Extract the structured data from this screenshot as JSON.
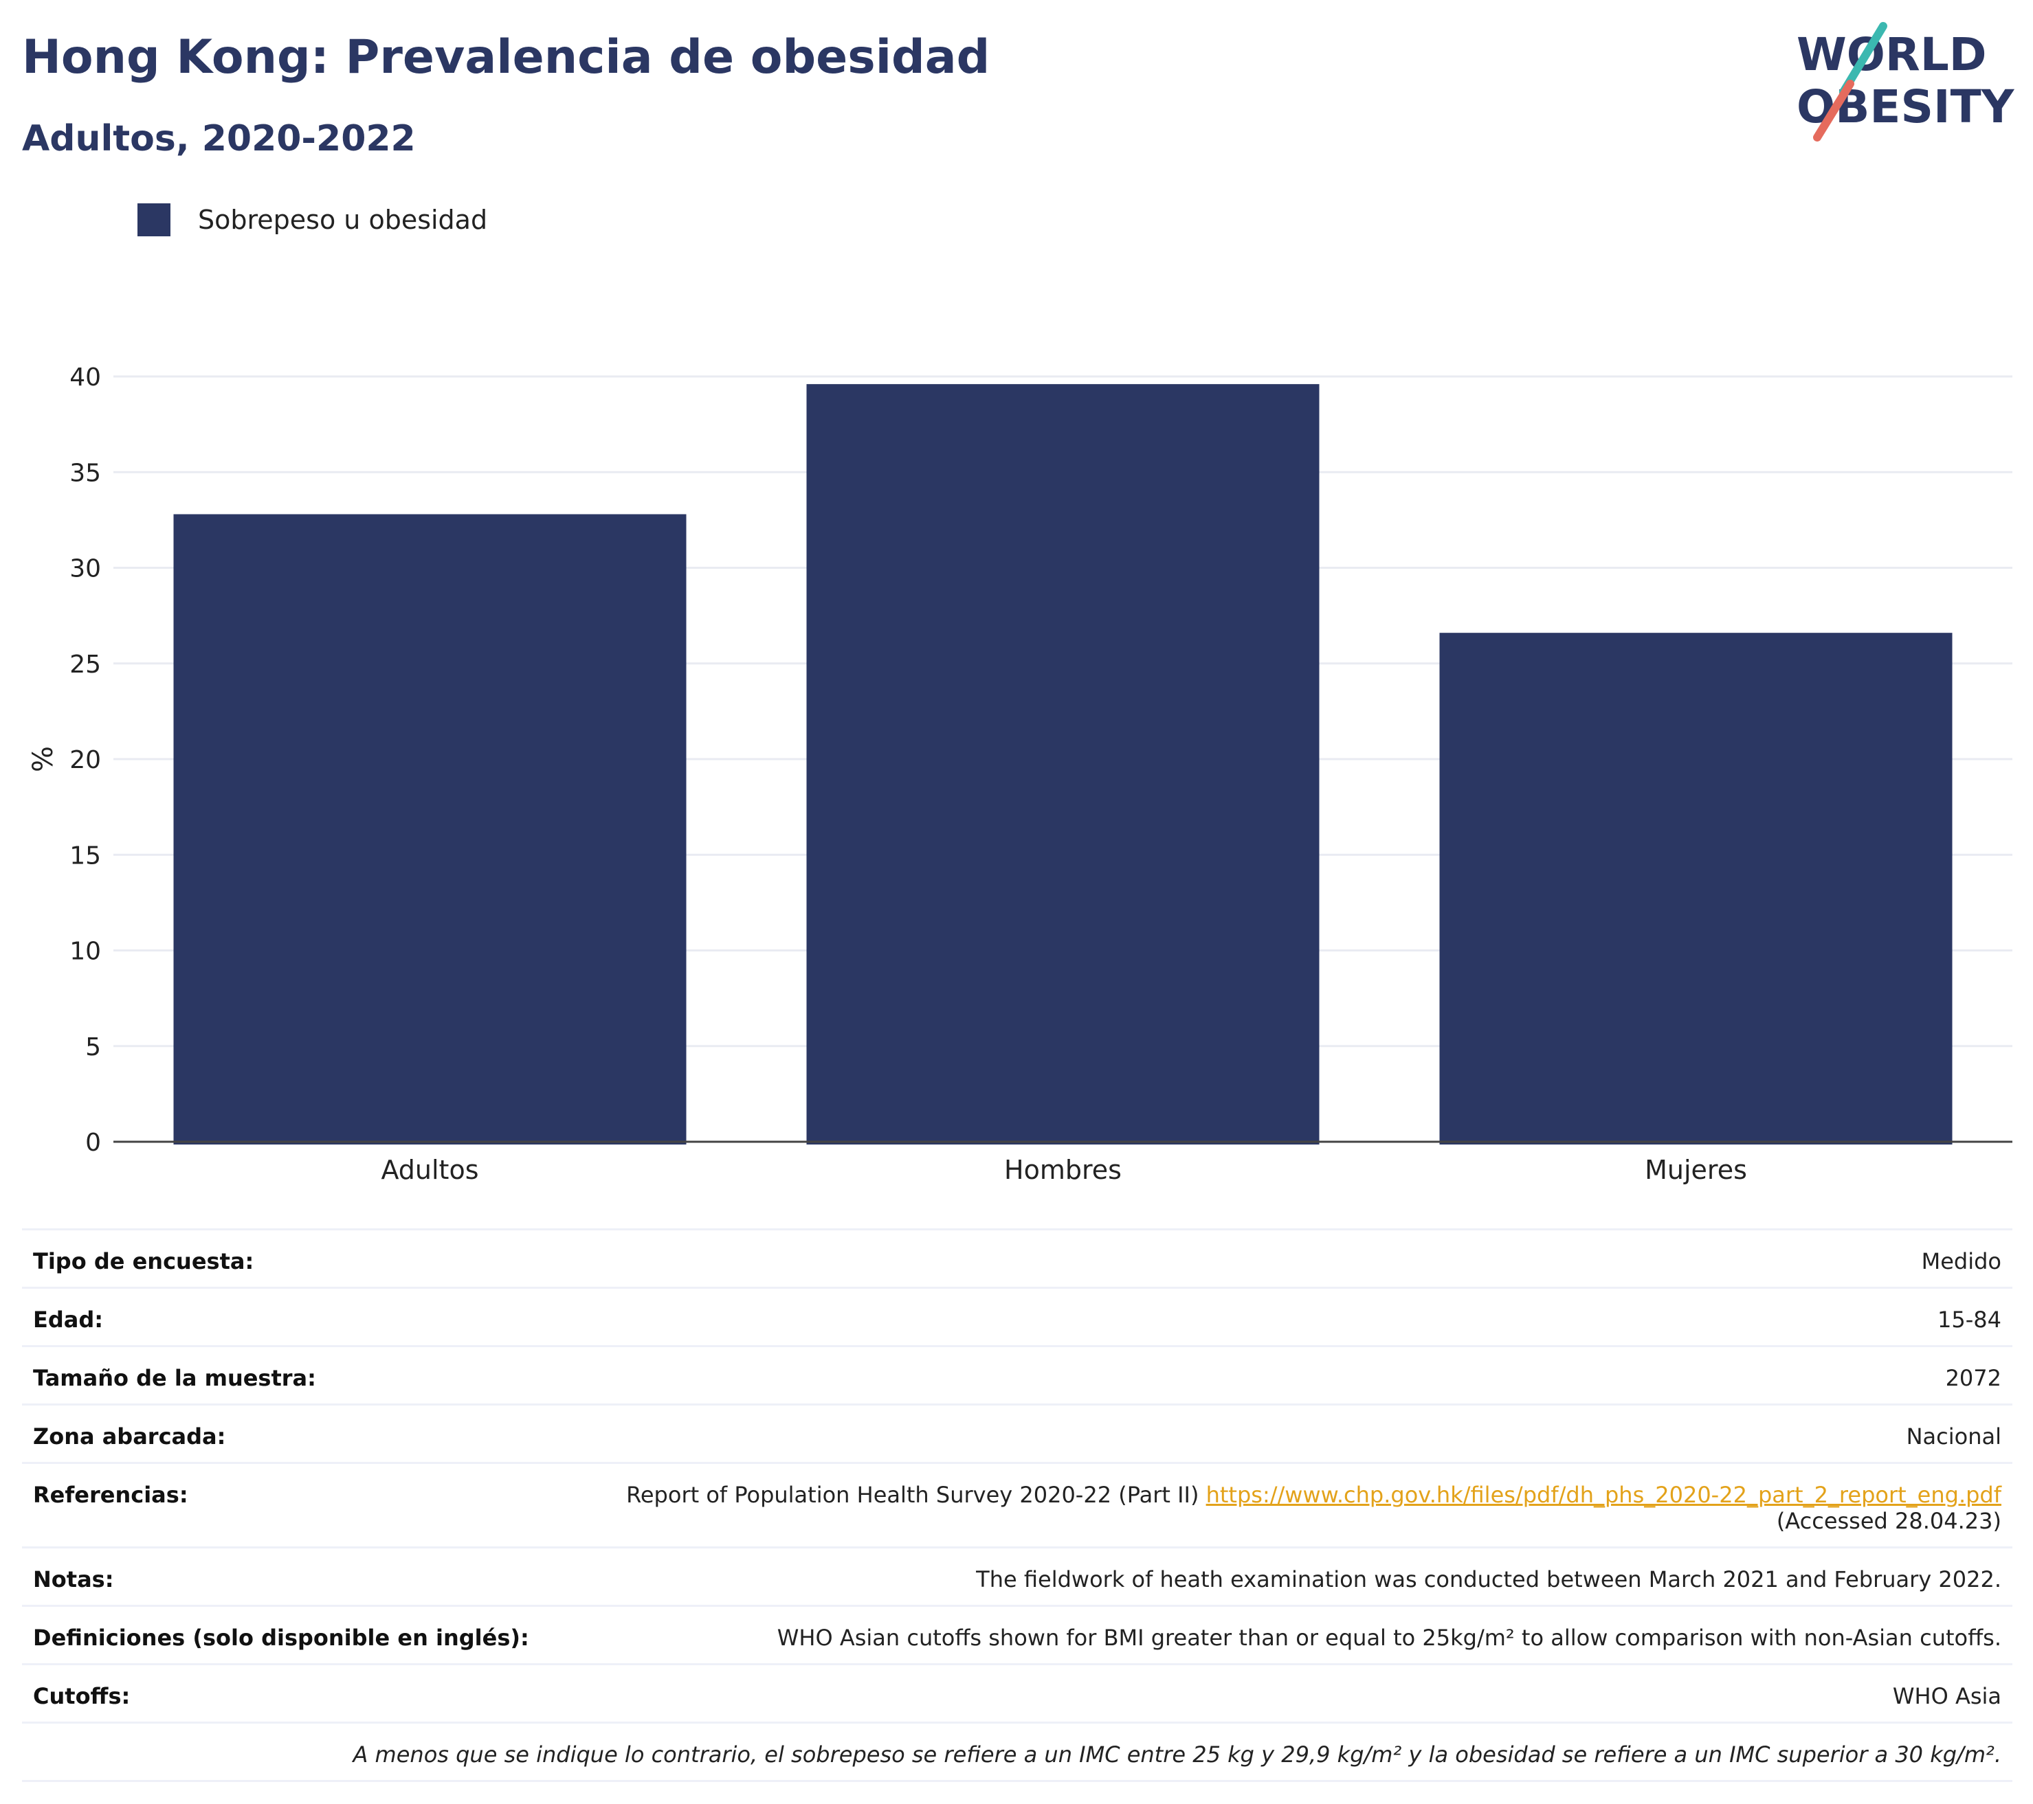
{
  "header": {
    "title": "Hong Kong: Prevalencia de obesidad",
    "subtitle": "Adultos, 2020-2022"
  },
  "logo": {
    "line1": "WORLD",
    "line2": "OBESITY"
  },
  "legend": {
    "label": "Sobrepeso u obesidad",
    "color": "#2b3763"
  },
  "chart_data": {
    "type": "bar",
    "title": "Hong Kong: Prevalencia de obesidad",
    "subtitle": "Adultos, 2020-2022",
    "categories": [
      "Adultos",
      "Hombres",
      "Mujeres"
    ],
    "series": [
      {
        "name": "Sobrepeso u obesidad",
        "values": [
          32.8,
          39.6,
          26.6
        ]
      }
    ],
    "ylabel": "%",
    "xlabel": "",
    "ylim": [
      0,
      40
    ],
    "yticks": [
      0,
      5,
      10,
      15,
      20,
      25,
      30,
      35,
      40
    ],
    "grid": true,
    "legend_position": "top-left",
    "bar_color": "#2b3763"
  },
  "info": {
    "survey_type": {
      "label": "Tipo de encuesta:",
      "value": "Medido"
    },
    "age": {
      "label": "Edad:",
      "value": "15-84"
    },
    "sample_size": {
      "label": "Tamaño de la muestra:",
      "value": "2072"
    },
    "area": {
      "label": "Zona abarcada:",
      "value": "Nacional"
    },
    "references": {
      "label": "Referencias:",
      "text": "Report of Population Health Survey 2020-22 (Part II)",
      "url": "https://www.chp.gov.hk/files/pdf/dh_phs_2020-22_part_2_report_eng.pdf",
      "accessed": "(Accessed 28.04.23)"
    },
    "notes": {
      "label": "Notas:",
      "value": "The fieldwork of heath examination was conducted between March 2021 and February 2022."
    },
    "definitions": {
      "label": "Definiciones (solo disponible en inglés):",
      "value": "WHO Asian cutoffs shown for BMI greater than or equal to 25kg/m² to allow comparison with non-Asian cutoffs."
    },
    "cutoffs": {
      "label": "Cutoffs:",
      "value": "WHO Asia"
    },
    "footnote": "A menos que se indique lo contrario, el sobrepeso se refiere a un IMC entre 25 kg y 29,9 kg/m² y la obesidad se refiere a un IMC superior a 30 kg/m²."
  }
}
